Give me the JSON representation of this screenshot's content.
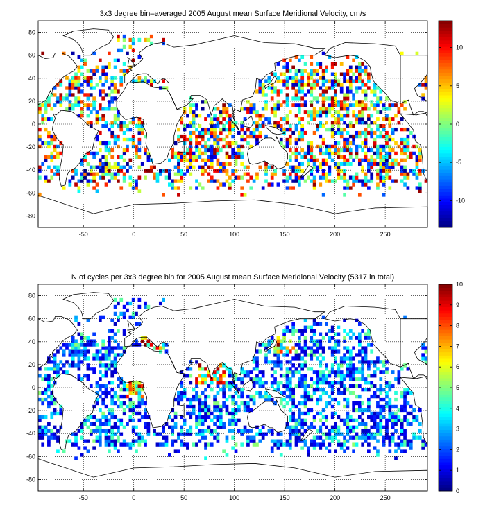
{
  "chart_data": [
    {
      "type": "heatmap",
      "title": "3x3 degree bin–averaged 2005 August mean Surface Meridional Velocity, cm/s",
      "xlim": [
        -95,
        292
      ],
      "ylim": [
        -90,
        90
      ],
      "bin_size_deg": 3,
      "x_ticks": [
        -50,
        0,
        50,
        100,
        150,
        200,
        250
      ],
      "y_ticks": [
        -80,
        -60,
        -40,
        -20,
        0,
        20,
        40,
        60,
        80
      ],
      "grid": "dotted",
      "colorbar": {
        "colormap": "jet",
        "range": [
          -13.5,
          13.5
        ],
        "ticks": [
          -10,
          -5,
          0,
          5,
          10
        ],
        "placement": "right"
      },
      "coverage": "scattered 3x3 bins along drifter tracks; dense in tropical and subtropical Atlantic, Indian and Pacific oceans, sparse at high latitudes; values span the full color range"
    },
    {
      "type": "heatmap",
      "title": "N of cycles per 3x3 degree bin for 2005 August mean Surface Meridional Velocity (5317 in total)",
      "total_cycles": 5317,
      "xlim": [
        -95,
        292
      ],
      "ylim": [
        -90,
        90
      ],
      "bin_size_deg": 3,
      "x_ticks": [
        -50,
        0,
        50,
        100,
        150,
        200,
        250
      ],
      "y_ticks": [
        -80,
        -60,
        -40,
        -20,
        0,
        20,
        40,
        60,
        80
      ],
      "grid": "dotted",
      "colorbar": {
        "colormap": "jet",
        "range": [
          0,
          10
        ],
        "ticks": [
          0,
          1,
          2,
          3,
          4,
          5,
          6,
          7,
          8,
          9,
          10
        ],
        "placement": "right"
      },
      "coverage": "mostly 1-4 cycles per bin; higher counts (7-10) near the Gulf of Guinea, the Mediterranean, the Arabian Sea/Bay of Bengal and the Kuroshio region"
    }
  ]
}
